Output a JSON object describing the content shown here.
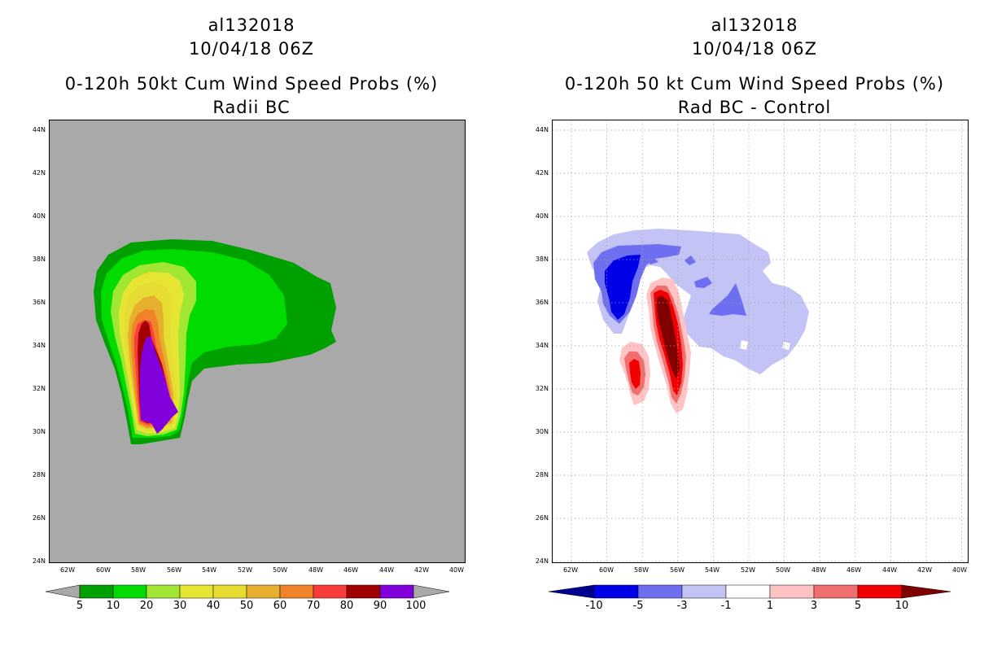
{
  "left_panel": {
    "title_line1": "al132018",
    "title_line2": "10/04/18 06Z",
    "title_line3": "0-120h 50kt Cum Wind Speed Probs (%)",
    "title_line4": "Radii BC",
    "lat_labels": [
      "44N",
      "42N",
      "40N",
      "38N",
      "36N",
      "34N",
      "32N",
      "30N",
      "28N",
      "26N",
      "24N"
    ],
    "lon_labels": [
      "62W",
      "60W",
      "58W",
      "56W",
      "54W",
      "52W",
      "50W",
      "48W",
      "46W",
      "44W",
      "42W",
      "40W"
    ],
    "colorbar_labels": [
      "5",
      "10",
      "20",
      "30",
      "40",
      "50",
      "60",
      "70",
      "80",
      "90",
      "100"
    ],
    "colorbar_colors": [
      "#00a000",
      "#00dc00",
      "#a0e632",
      "#e6e632",
      "#e6dc32",
      "#e6af2d",
      "#f08228",
      "#fa3c3c",
      "#a00000",
      "#8200dc"
    ],
    "background_color": "#a9a9a9"
  },
  "right_panel": {
    "title_line1": "al132018",
    "title_line2": "10/04/18 06Z",
    "title_line3": "0-120h 50 kt Cum Wind Speed Probs (%)",
    "title_line4": "Rad BC - Control",
    "lat_labels": [
      "44N",
      "42N",
      "40N",
      "38N",
      "36N",
      "34N",
      "32N",
      "30N",
      "28N",
      "26N",
      "24N"
    ],
    "lon_labels": [
      "62W",
      "60W",
      "58W",
      "56W",
      "54W",
      "52W",
      "50W",
      "48W",
      "46W",
      "44W",
      "42W",
      "40W"
    ],
    "colorbar_labels": [
      "-10",
      "-5",
      "-3",
      "-1",
      "1",
      "3",
      "5",
      "10"
    ],
    "colorbar_colors": [
      "#0000e6",
      "#6e6ef0",
      "#c3c3f5",
      "#ffffff",
      "#ffc3c3",
      "#f06e6e",
      "#f00000"
    ],
    "end_left_color": "#000090",
    "end_right_color": "#800000"
  }
}
